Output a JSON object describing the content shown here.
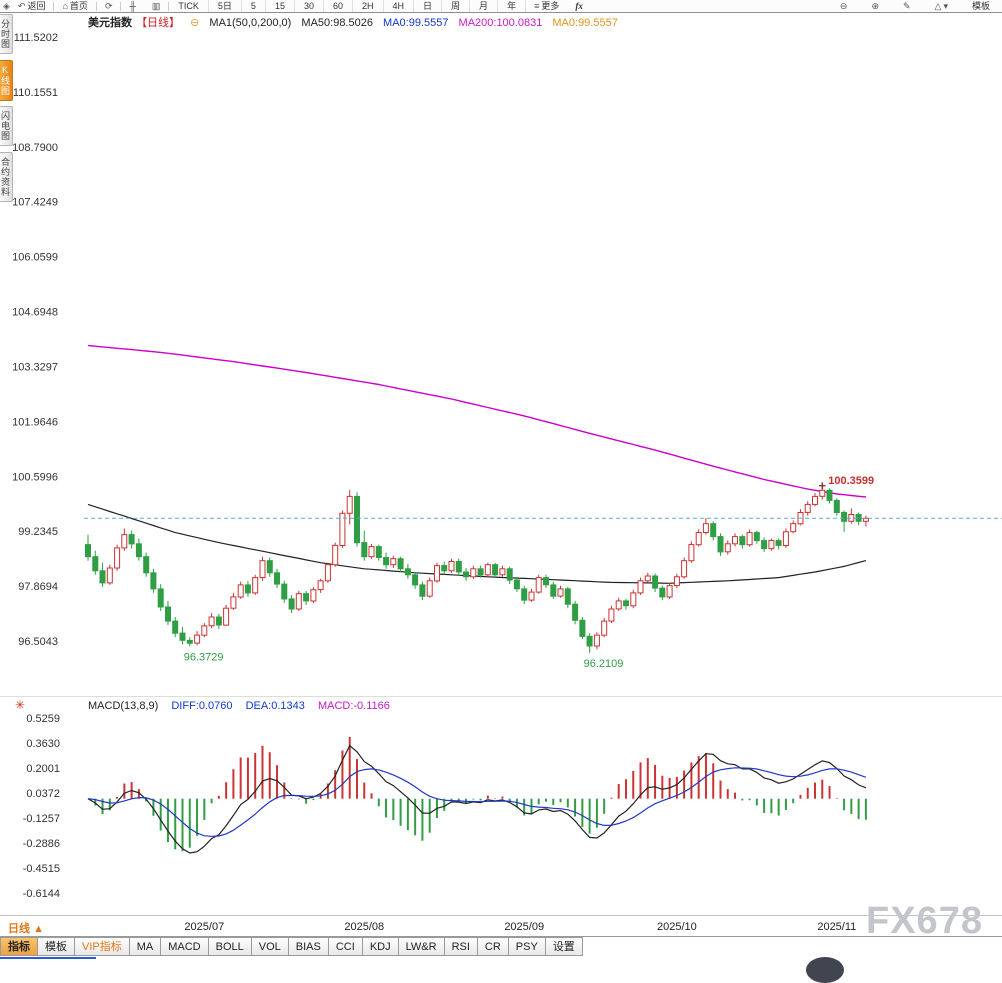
{
  "toolbar": {
    "back": "返回",
    "home": "首页",
    "periods": [
      "TICK",
      "5日",
      "5",
      "15",
      "30",
      "60",
      "2H",
      "4H",
      "日",
      "周",
      "月",
      "年"
    ],
    "more": "更多",
    "fx": "fx",
    "template": "模板"
  },
  "sidebar": {
    "items": [
      {
        "label": "分时图",
        "selected": false
      },
      {
        "label": "K线图",
        "selected": true
      },
      {
        "label": "闪电图",
        "selected": false
      },
      {
        "label": "合约资料",
        "selected": false
      }
    ]
  },
  "chart_header": {
    "symbol": "美元指数",
    "period_tag": "【日线】",
    "ma_config": "MA1(50,0,200,0)",
    "ma50": "MA50:98.5026",
    "ma0_blue": "MA0:99.5557",
    "ma200": "MA200:100.0831",
    "ma0_orange": "MA0:99.5557"
  },
  "macd_header": {
    "name": "MACD(13,8,9)",
    "diff": "DIFF:0.0760",
    "dea": "DEA:0.1343",
    "macd": "MACD:-0.1166"
  },
  "bottom": {
    "period_label": "日线",
    "period_caret": "▲",
    "tabs_left": [
      "指标",
      "模板",
      "VIP指标"
    ],
    "tabs_indicators": [
      "MA",
      "MACD",
      "BOLL",
      "VOL",
      "BIAS",
      "CCI",
      "KDJ",
      "LW&R",
      "RSI",
      "CR",
      "PSY",
      "设置"
    ],
    "watermark": "FX678"
  },
  "chart_data": {
    "type": "candlestick_with_macd",
    "title": "美元指数 日线",
    "symbol": "美元指数",
    "period": "日线",
    "last_price": 99.5557,
    "y_axis_labels": [
      "111.5202",
      "110.1551",
      "108.7900",
      "107.4249",
      "106.0599",
      "104.6948",
      "103.3297",
      "101.9646",
      "100.5996",
      "99.2345",
      "97.8694",
      "96.5043"
    ],
    "x_axis_labels": [
      {
        "label": "2025/07",
        "index": 16
      },
      {
        "label": "2025/08",
        "index": 38
      },
      {
        "label": "2025/09",
        "index": 60
      },
      {
        "label": "2025/10",
        "index": 81
      },
      {
        "label": "2025/11",
        "index": 103
      }
    ],
    "annotations": [
      {
        "index": 14,
        "value": 96.3729,
        "text": "96.3729",
        "type": "low",
        "color": "#2f9e44"
      },
      {
        "index": 69,
        "value": 96.2109,
        "text": "96.2109",
        "type": "low",
        "color": "#2f9e44"
      },
      {
        "index": 101,
        "value": 100.3599,
        "text": "100.3599",
        "type": "high",
        "color": "#c83030"
      }
    ],
    "candles": [
      [
        98.9,
        99.15,
        98.5,
        98.6
      ],
      [
        98.6,
        98.75,
        98.15,
        98.25
      ],
      [
        98.25,
        98.45,
        97.85,
        97.95
      ],
      [
        97.95,
        98.4,
        97.9,
        98.32
      ],
      [
        98.32,
        98.9,
        98.25,
        98.82
      ],
      [
        98.82,
        99.3,
        98.75,
        99.15
      ],
      [
        99.15,
        99.25,
        98.8,
        98.92
      ],
      [
        98.92,
        99.05,
        98.5,
        98.6
      ],
      [
        98.6,
        98.7,
        98.1,
        98.2
      ],
      [
        98.2,
        98.3,
        97.7,
        97.8
      ],
      [
        97.8,
        97.92,
        97.25,
        97.35
      ],
      [
        97.35,
        97.5,
        96.9,
        97.0
      ],
      [
        97.0,
        97.1,
        96.6,
        96.7
      ],
      [
        96.7,
        96.85,
        96.42,
        96.52
      ],
      [
        96.52,
        96.6,
        96.3729,
        96.45
      ],
      [
        96.45,
        96.75,
        96.4,
        96.65
      ],
      [
        96.65,
        96.95,
        96.6,
        96.88
      ],
      [
        96.88,
        97.2,
        96.82,
        97.1
      ],
      [
        97.1,
        97.18,
        96.8,
        96.9
      ],
      [
        96.9,
        97.4,
        96.88,
        97.32
      ],
      [
        97.32,
        97.7,
        97.28,
        97.6
      ],
      [
        97.6,
        97.98,
        97.55,
        97.9
      ],
      [
        97.9,
        98.0,
        97.6,
        97.7
      ],
      [
        97.7,
        98.15,
        97.65,
        98.08
      ],
      [
        98.08,
        98.6,
        98.0,
        98.5
      ],
      [
        98.5,
        98.58,
        98.1,
        98.2
      ],
      [
        98.2,
        98.3,
        97.82,
        97.92
      ],
      [
        97.92,
        98.0,
        97.45,
        97.55
      ],
      [
        97.55,
        97.65,
        97.2,
        97.3
      ],
      [
        97.3,
        97.75,
        97.25,
        97.68
      ],
      [
        97.68,
        97.75,
        97.4,
        97.5
      ],
      [
        97.5,
        97.85,
        97.45,
        97.78
      ],
      [
        97.78,
        98.05,
        97.7,
        98.0
      ],
      [
        98.0,
        98.45,
        97.95,
        98.4
      ],
      [
        98.4,
        98.95,
        98.35,
        98.88
      ],
      [
        98.88,
        99.75,
        98.82,
        99.68
      ],
      [
        99.68,
        100.26,
        99.4,
        100.1
      ],
      [
        100.1,
        100.2,
        98.85,
        98.95
      ],
      [
        98.95,
        99.25,
        98.5,
        98.6
      ],
      [
        98.6,
        98.92,
        98.55,
        98.85
      ],
      [
        98.85,
        98.9,
        98.5,
        98.58
      ],
      [
        98.58,
        98.7,
        98.3,
        98.4
      ],
      [
        98.4,
        98.62,
        98.32,
        98.55
      ],
      [
        98.55,
        98.6,
        98.22,
        98.3
      ],
      [
        98.3,
        98.42,
        98.05,
        98.15
      ],
      [
        98.15,
        98.22,
        97.8,
        97.9
      ],
      [
        97.9,
        97.98,
        97.52,
        97.62
      ],
      [
        97.62,
        98.08,
        97.58,
        98.0
      ],
      [
        98.0,
        98.45,
        97.95,
        98.38
      ],
      [
        98.38,
        98.48,
        98.15,
        98.25
      ],
      [
        98.25,
        98.55,
        98.2,
        98.48
      ],
      [
        98.48,
        98.55,
        98.12,
        98.22
      ],
      [
        98.22,
        98.32,
        98.0,
        98.1
      ],
      [
        98.1,
        98.38,
        98.05,
        98.3
      ],
      [
        98.3,
        98.38,
        98.08,
        98.15
      ],
      [
        98.15,
        98.45,
        98.1,
        98.4
      ],
      [
        98.4,
        98.45,
        98.08,
        98.15
      ],
      [
        98.15,
        98.38,
        98.1,
        98.3
      ],
      [
        98.3,
        98.35,
        97.92,
        98.02
      ],
      [
        98.02,
        98.1,
        97.72,
        97.8
      ],
      [
        97.8,
        97.88,
        97.42,
        97.52
      ],
      [
        97.52,
        97.8,
        97.48,
        97.72
      ],
      [
        97.72,
        98.15,
        97.68,
        98.08
      ],
      [
        98.08,
        98.15,
        97.82,
        97.9
      ],
      [
        97.9,
        97.98,
        97.55,
        97.62
      ],
      [
        97.62,
        97.88,
        97.58,
        97.8
      ],
      [
        97.8,
        97.85,
        97.32,
        97.42
      ],
      [
        97.42,
        97.5,
        96.92,
        97.02
      ],
      [
        97.02,
        97.1,
        96.55,
        96.62
      ],
      [
        96.62,
        96.7,
        96.2109,
        96.38
      ],
      [
        96.38,
        96.72,
        96.3,
        96.65
      ],
      [
        96.65,
        97.08,
        96.6,
        97.0
      ],
      [
        97.0,
        97.38,
        96.95,
        97.3
      ],
      [
        97.3,
        97.58,
        97.25,
        97.5
      ],
      [
        97.5,
        97.55,
        97.28,
        97.38
      ],
      [
        97.38,
        97.78,
        97.32,
        97.7
      ],
      [
        97.7,
        98.08,
        97.65,
        98.0
      ],
      [
        98.0,
        98.2,
        97.95,
        98.12
      ],
      [
        98.12,
        98.18,
        97.72,
        97.82
      ],
      [
        97.82,
        97.88,
        97.52,
        97.6
      ],
      [
        97.6,
        97.95,
        97.55,
        97.88
      ],
      [
        97.88,
        98.18,
        97.82,
        98.1
      ],
      [
        98.1,
        98.58,
        98.05,
        98.5
      ],
      [
        98.5,
        98.98,
        98.45,
        98.9
      ],
      [
        98.9,
        99.28,
        98.85,
        99.2
      ],
      [
        99.2,
        99.56,
        99.15,
        99.42
      ],
      [
        99.42,
        99.48,
        99.0,
        99.1
      ],
      [
        99.1,
        99.18,
        98.62,
        98.72
      ],
      [
        98.72,
        99.0,
        98.65,
        98.92
      ],
      [
        98.92,
        99.18,
        98.85,
        99.1
      ],
      [
        99.1,
        99.15,
        98.8,
        98.9
      ],
      [
        98.9,
        99.28,
        98.85,
        99.2
      ],
      [
        99.2,
        99.25,
        98.92,
        99.0
      ],
      [
        99.0,
        99.08,
        98.72,
        98.8
      ],
      [
        98.8,
        99.05,
        98.75,
        99.0
      ],
      [
        99.0,
        99.05,
        98.78,
        98.88
      ],
      [
        98.88,
        99.3,
        98.82,
        99.22
      ],
      [
        99.22,
        99.5,
        99.18,
        99.42
      ],
      [
        99.42,
        99.78,
        99.38,
        99.7
      ],
      [
        99.7,
        99.98,
        99.62,
        99.9
      ],
      [
        99.9,
        100.18,
        99.85,
        100.1
      ],
      [
        100.1,
        100.3599,
        100.02,
        100.25
      ],
      [
        100.25,
        100.3,
        99.92,
        100.0
      ],
      [
        100.0,
        100.05,
        99.62,
        99.7
      ],
      [
        99.7,
        99.75,
        99.22,
        99.48
      ],
      [
        99.48,
        99.8,
        99.42,
        99.65
      ],
      [
        99.65,
        99.7,
        99.38,
        99.48
      ],
      [
        99.48,
        99.62,
        99.35,
        99.5557
      ]
    ],
    "ma50_points": [
      [
        0,
        99.9
      ],
      [
        6,
        99.55
      ],
      [
        12,
        99.2
      ],
      [
        18,
        98.95
      ],
      [
        25,
        98.7
      ],
      [
        32,
        98.45
      ],
      [
        38,
        98.3
      ],
      [
        45,
        98.2
      ],
      [
        55,
        98.1
      ],
      [
        65,
        98.02
      ],
      [
        72,
        97.96
      ],
      [
        80,
        97.94
      ],
      [
        88,
        98.0
      ],
      [
        95,
        98.08
      ],
      [
        100,
        98.22
      ],
      [
        104,
        98.36
      ],
      [
        107,
        98.5026
      ]
    ],
    "ma200_points": [
      [
        0,
        103.85
      ],
      [
        10,
        103.68
      ],
      [
        20,
        103.45
      ],
      [
        30,
        103.18
      ],
      [
        40,
        102.88
      ],
      [
        50,
        102.52
      ],
      [
        60,
        102.1
      ],
      [
        70,
        101.62
      ],
      [
        78,
        101.25
      ],
      [
        86,
        100.85
      ],
      [
        93,
        100.52
      ],
      [
        99,
        100.28
      ],
      [
        103,
        100.16
      ],
      [
        107,
        100.0831
      ]
    ],
    "macd": {
      "params": {
        "short": 8,
        "long": 13,
        "signal": 9
      },
      "y_axis_labels": [
        "0.5259",
        "0.3630",
        "0.2001",
        "0.0372",
        "-0.1257",
        "-0.2886",
        "-0.4515",
        "-0.6144"
      ]
    },
    "colors": {
      "up": "#cc3333",
      "down": "#2f9e44",
      "ma50": "#222222",
      "ma200": "#cc00cc",
      "diff": "#222222",
      "dea": "#2038c8",
      "last": "#5fa8d8"
    }
  }
}
